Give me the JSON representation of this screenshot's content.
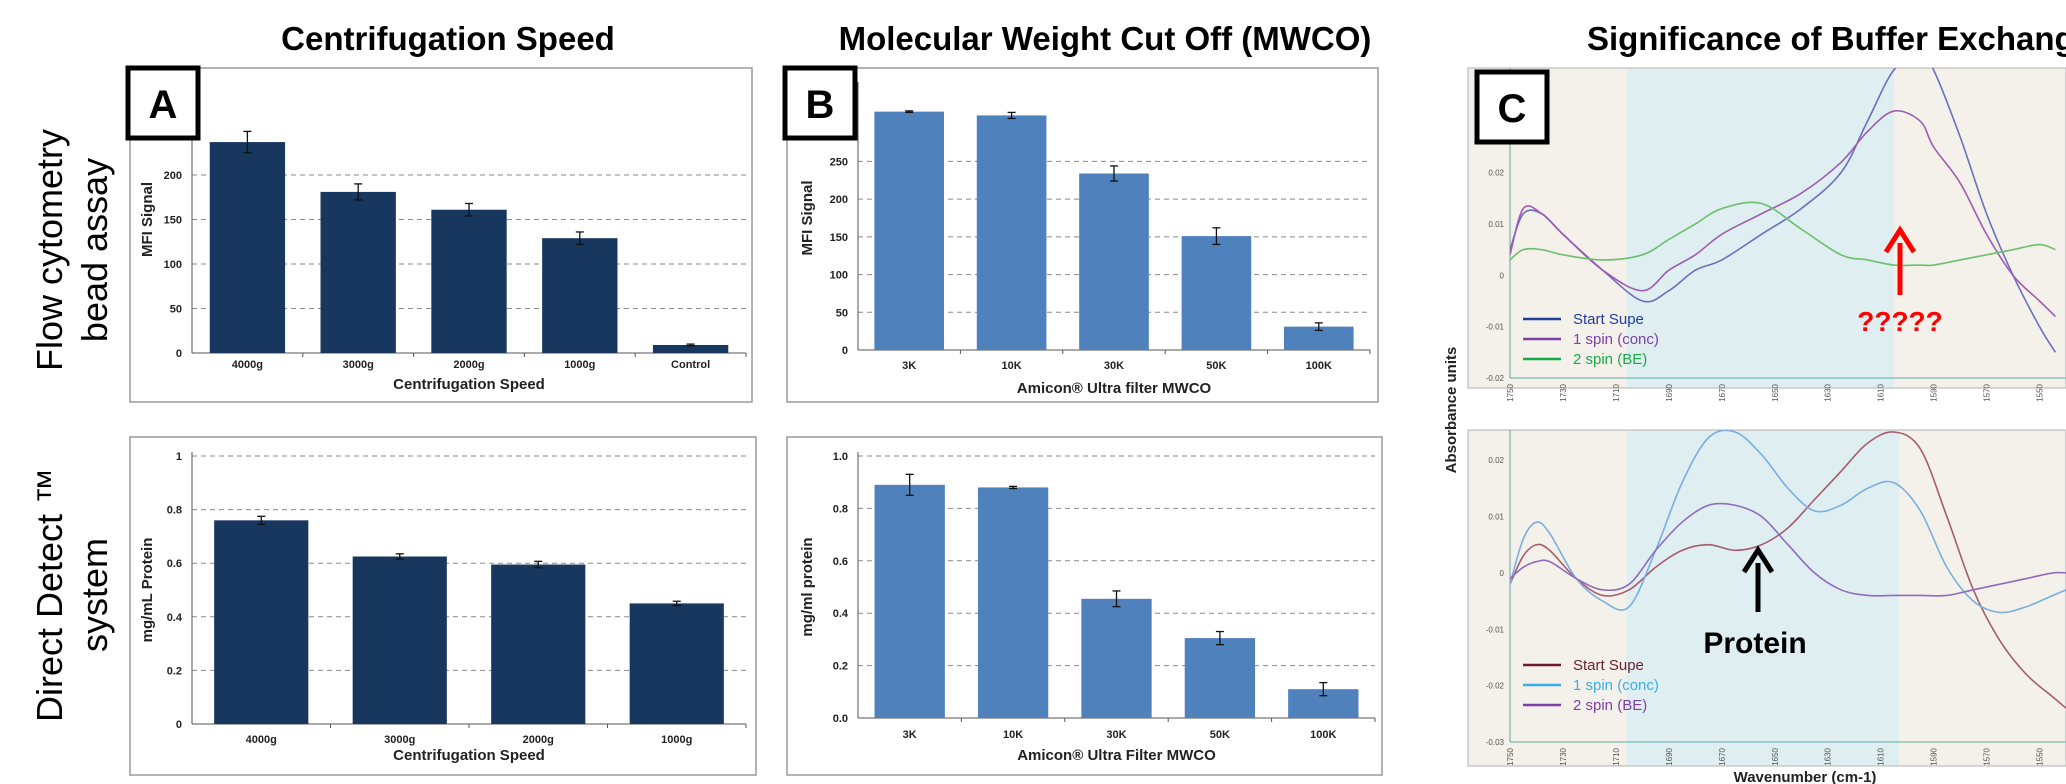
{
  "column_titles": [
    "Centrifugation Speed",
    "Molecular Weight Cut Off (MWCO)",
    "Significance of Buffer Exchange"
  ],
  "row_labels": [
    {
      "line1": "Flow  cytometry",
      "line2": "bead assay"
    },
    {
      "line1": "Direct Detect ™",
      "line2": "system"
    }
  ],
  "panel_letters": [
    "A",
    "B",
    "C"
  ],
  "colors": {
    "dark_bar": "#17375e",
    "light_bar": "#4f81bd",
    "shade_band": "#daeef3",
    "arrow_red": "#ff0000"
  },
  "chart_data": [
    {
      "id": "a-top",
      "type": "bar",
      "categories": [
        "4000g",
        "3000g",
        "2000g",
        "1000g",
        "Control"
      ],
      "values": [
        237,
        181,
        161,
        129,
        9
      ],
      "errors": [
        12,
        9,
        7,
        7,
        1
      ],
      "xlabel": "Centrifugation Speed",
      "ylabel": "MFI Signal",
      "ylim": [
        0,
        300
      ],
      "yticks": [
        0,
        50,
        100,
        150,
        200
      ],
      "ytick_labels": [
        "0",
        "50",
        "100",
        "150",
        "200"
      ],
      "grid": true
    },
    {
      "id": "a-bottom",
      "type": "bar",
      "categories": [
        "4000g",
        "3000g",
        "2000g",
        "1000g"
      ],
      "values": [
        0.76,
        0.625,
        0.595,
        0.45
      ],
      "errors": [
        0.015,
        0.01,
        0.012,
        0.008
      ],
      "xlabel": "Centrifugation Speed",
      "ylabel": "mg/mL Protein",
      "ylim": [
        0,
        1
      ],
      "yticks": [
        0,
        0.2,
        0.4,
        0.6,
        0.8,
        1
      ],
      "ytick_labels": [
        "0",
        "0.2",
        "0.4",
        "0.6",
        "0.8",
        "1"
      ],
      "grid": true
    },
    {
      "id": "b-top",
      "type": "bar",
      "categories": [
        "3K",
        "10K",
        "30K",
        "50K",
        "100K"
      ],
      "values": [
        316,
        311,
        234,
        151,
        31
      ],
      "errors": [
        1,
        4,
        10,
        11,
        5
      ],
      "xlabel": "Amicon® Ultra filter MWCO",
      "ylabel": "MFI Signal",
      "ylim": [
        0,
        350
      ],
      "yticks": [
        0,
        50,
        100,
        150,
        200,
        250
      ],
      "ytick_labels": [
        "0",
        "50",
        "100",
        "150",
        "200",
        "250"
      ],
      "grid": true
    },
    {
      "id": "b-bottom",
      "type": "bar",
      "categories": [
        "3K",
        "10K",
        "30K",
        "50K",
        "100K"
      ],
      "values": [
        0.89,
        0.88,
        0.455,
        0.305,
        0.11
      ],
      "errors": [
        0.04,
        0.004,
        0.03,
        0.025,
        0.025
      ],
      "xlabel": "Amicon® Ultra Filter MWCO",
      "ylabel": "mg/ml protein",
      "ylim": [
        0,
        1
      ],
      "yticks": [
        0,
        0.2,
        0.4,
        0.6,
        0.8,
        1
      ],
      "ytick_labels": [
        "0.0",
        "0.2",
        "0.4",
        "0.6",
        "0.8",
        "1.0"
      ],
      "grid": true
    },
    {
      "id": "c-top",
      "type": "line",
      "xlabel": "",
      "ylabel": "",
      "xlim": [
        1750,
        1540
      ],
      "ylim": [
        -0.02,
        0.04
      ],
      "yticks": [
        -0.02,
        -0.01,
        0,
        0.01,
        0.02
      ],
      "ytick_labels": [
        "-0.02",
        "-0.01",
        "0",
        "0.01",
        "0.02"
      ],
      "xticks": [
        "1750",
        "1730",
        "1710",
        "1690",
        "1670",
        "1650",
        "1630",
        "1610",
        "1590",
        "1570",
        "1550"
      ],
      "shaded_band": [
        1706,
        1605
      ],
      "series": [
        {
          "name": "Start Supe",
          "color": "#6a6fc0",
          "x": [
            1750,
            1745,
            1738,
            1730,
            1715,
            1700,
            1690,
            1680,
            1670,
            1655,
            1640,
            1625,
            1615,
            1605,
            1595,
            1590,
            1580,
            1570,
            1560,
            1550,
            1544
          ],
          "y": [
            0.005,
            0.012,
            0.012,
            0.008,
            0.001,
            -0.005,
            -0.003,
            0.001,
            0.003,
            0.008,
            0.013,
            0.02,
            0.03,
            0.04,
            0.043,
            0.04,
            0.027,
            0.012,
            0,
            -0.01,
            -0.015
          ]
        },
        {
          "name": "1 spin (conc)",
          "color": "#9f5bb0",
          "x": [
            1750,
            1745,
            1738,
            1730,
            1715,
            1700,
            1690,
            1680,
            1670,
            1655,
            1640,
            1625,
            1615,
            1605,
            1595,
            1590,
            1580,
            1570,
            1560,
            1550,
            1544
          ],
          "y": [
            0.004,
            0.013,
            0.012,
            0.008,
            0.001,
            -0.003,
            0.001,
            0.004,
            0.008,
            0.012,
            0.016,
            0.022,
            0.028,
            0.032,
            0.03,
            0.025,
            0.018,
            0.008,
            0,
            -0.005,
            -0.008
          ]
        },
        {
          "name": "2 spin (BE)",
          "color": "#6cbf6c",
          "x": [
            1750,
            1745,
            1738,
            1730,
            1715,
            1700,
            1690,
            1680,
            1670,
            1655,
            1640,
            1625,
            1615,
            1605,
            1595,
            1590,
            1580,
            1570,
            1560,
            1550,
            1544
          ],
          "y": [
            0.003,
            0.005,
            0.005,
            0.004,
            0.003,
            0.004,
            0.007,
            0.01,
            0.013,
            0.014,
            0.009,
            0.004,
            0.003,
            0.002,
            0.002,
            0.002,
            0.003,
            0.004,
            0.005,
            0.006,
            0.005
          ]
        }
      ],
      "legend": [
        "Start Supe",
        "1 spin (conc)",
        "2 spin (BE)"
      ],
      "legend_colors": [
        "#1f3d9e",
        "#7c3fa8",
        "#1aa84a"
      ],
      "annotation": "?????"
    },
    {
      "id": "c-bottom",
      "type": "line",
      "xlabel": "Wavenumber (cm-1)",
      "ylabel": "",
      "xlim": [
        1750,
        1540
      ],
      "ylim": [
        -0.03,
        0.025
      ],
      "yticks": [
        -0.03,
        -0.02,
        -0.01,
        0,
        0.01,
        0.02
      ],
      "ytick_labels": [
        "-0.03",
        "-0.02",
        "-0.01",
        "0",
        "0.01",
        "0.02"
      ],
      "xticks": [
        "1750",
        "1730",
        "1710",
        "1690",
        "1670",
        "1650",
        "1630",
        "1610",
        "1590",
        "1570",
        "1550"
      ],
      "shaded_band": [
        1706,
        1603
      ],
      "series": [
        {
          "name": "Start Supe",
          "color": "#a65c6c",
          "x": [
            1750,
            1745,
            1740,
            1735,
            1725,
            1715,
            1705,
            1695,
            1685,
            1675,
            1665,
            1655,
            1645,
            1635,
            1625,
            1615,
            1605,
            1595,
            1585,
            1575,
            1565,
            1555,
            1545,
            1540
          ],
          "y": [
            -0.002,
            0.003,
            0.005,
            0.004,
            -0.001,
            -0.004,
            -0.003,
            0.001,
            0.004,
            0.005,
            0.004,
            0.005,
            0.008,
            0.013,
            0.018,
            0.023,
            0.025,
            0.022,
            0.01,
            -0.003,
            -0.012,
            -0.018,
            -0.022,
            -0.024
          ]
        },
        {
          "name": "1 spin (conc)",
          "color": "#7aaee0",
          "x": [
            1750,
            1745,
            1740,
            1735,
            1725,
            1715,
            1705,
            1695,
            1685,
            1675,
            1665,
            1655,
            1645,
            1635,
            1625,
            1615,
            1605,
            1595,
            1585,
            1575,
            1565,
            1555,
            1545,
            1540
          ],
          "y": [
            -0.002,
            0.006,
            0.009,
            0.007,
            -0.001,
            -0.005,
            -0.006,
            0.004,
            0.016,
            0.024,
            0.025,
            0.021,
            0.015,
            0.011,
            0.012,
            0.015,
            0.016,
            0.011,
            0.001,
            -0.005,
            -0.007,
            -0.006,
            -0.004,
            -0.003
          ]
        },
        {
          "name": "2 spin (BE)",
          "color": "#8e6bc0",
          "x": [
            1750,
            1745,
            1740,
            1735,
            1725,
            1715,
            1705,
            1695,
            1685,
            1675,
            1665,
            1655,
            1645,
            1635,
            1625,
            1615,
            1605,
            1595,
            1585,
            1575,
            1565,
            1555,
            1545,
            1540
          ],
          "y": [
            -0.001,
            0.001,
            0.002,
            0.002,
            -0.001,
            -0.003,
            -0.002,
            0.004,
            0.009,
            0.012,
            0.012,
            0.01,
            0.005,
            0.0,
            -0.003,
            -0.004,
            -0.004,
            -0.004,
            -0.004,
            -0.003,
            -0.002,
            -0.001,
            0.0,
            0.0
          ]
        }
      ],
      "legend": [
        "Start Supe",
        "1 spin (conc)",
        "2 spin (BE)"
      ],
      "legend_colors": [
        "#6b1f2e",
        "#3aaee8",
        "#7c3fa8"
      ],
      "annotation": "Protein"
    }
  ],
  "c_shared_ylabel": "Absorbance units"
}
